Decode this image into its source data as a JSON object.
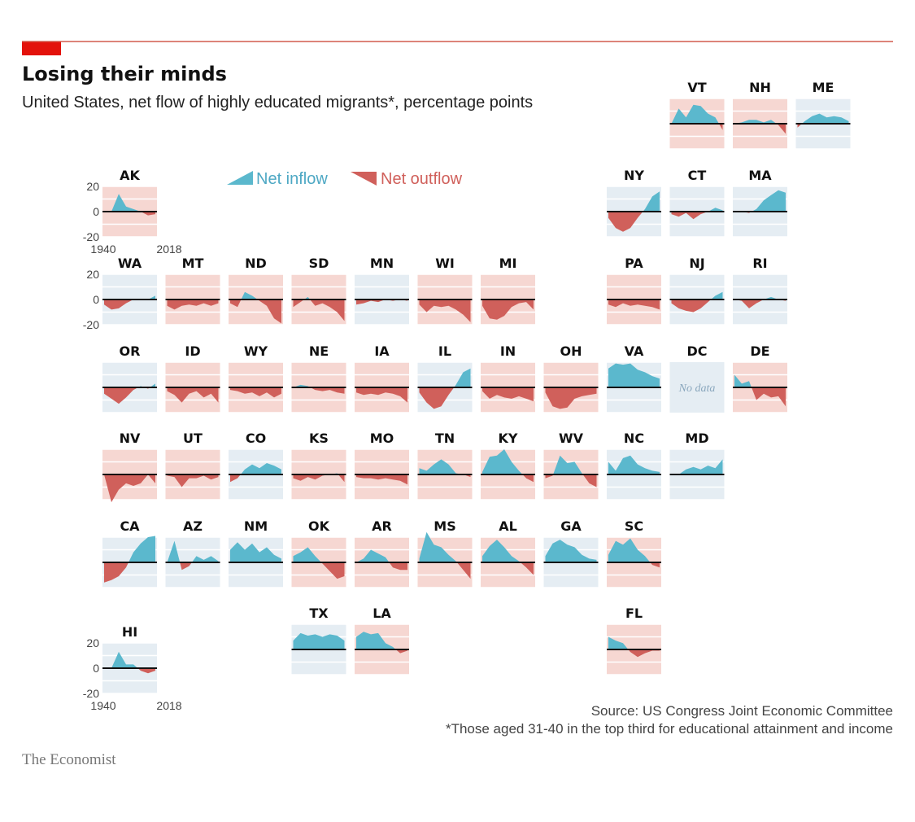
{
  "colors": {
    "inflow": "#5bb8cd",
    "outflow": "#d0605b",
    "bg_in": "#e5edf3",
    "bg_out": "#f6d7d2",
    "grid": "#ffffff",
    "zero": "#111111",
    "accent": "#e3120b",
    "rule": "#d25c4f"
  },
  "header": {
    "title": "Losing their minds",
    "subtitle": "United States, net flow of highly educated migrants*, percentage points"
  },
  "legend": {
    "inflow": "Net inflow",
    "outflow": "Net outflow"
  },
  "footer": {
    "source": "Source: US Congress Joint Economic Committee",
    "note": "*Those aged 31-40 in the top third for educational attainment and income",
    "brand": "The Economist"
  },
  "chart_data": {
    "type": "area",
    "title": "Losing their minds",
    "subtitle": "United States, net flow of highly educated migrants*, percentage points",
    "xlim": [
      1940,
      2018
    ],
    "ylim": [
      -20,
      20
    ],
    "y_ticks": [
      "20",
      "0",
      "-20"
    ],
    "x_ticks": [
      "1940",
      "2018"
    ],
    "states": [
      {
        "id": "VT",
        "bg": "out",
        "col": 10,
        "row": 0,
        "values": [
          0,
          12,
          5,
          15,
          14,
          8,
          5,
          -5
        ]
      },
      {
        "id": "NH",
        "bg": "out",
        "col": 11,
        "row": 0,
        "values": [
          0,
          1,
          3,
          3,
          1,
          3,
          -1,
          -8
        ]
      },
      {
        "id": "ME",
        "bg": "in",
        "col": 12,
        "row": 0,
        "values": [
          -3,
          2,
          6,
          8,
          5,
          6,
          5,
          2
        ]
      },
      {
        "id": "AK",
        "bg": "out",
        "col": 1,
        "row": 1,
        "values": [
          0,
          0,
          14,
          4,
          2,
          0,
          -3,
          -2
        ],
        "axes": true
      },
      {
        "id": "NY",
        "bg": "in",
        "col": 9,
        "row": 1,
        "values": [
          -5,
          -13,
          -16,
          -13,
          -5,
          2,
          12,
          16
        ]
      },
      {
        "id": "CT",
        "bg": "in",
        "col": 10,
        "row": 1,
        "values": [
          -2,
          -4,
          -1,
          -6,
          -2,
          0,
          3,
          1
        ]
      },
      {
        "id": "MA",
        "bg": "in",
        "col": 11,
        "row": 1,
        "values": [
          0,
          0,
          -1,
          2,
          9,
          13,
          17,
          15
        ]
      },
      {
        "id": "WA",
        "bg": "in",
        "col": 1,
        "row": 2,
        "values": [
          -4,
          -8,
          -7,
          -3,
          0,
          0,
          0,
          3
        ],
        "axes": true
      },
      {
        "id": "MT",
        "bg": "out",
        "col": 2,
        "row": 2,
        "values": [
          -5,
          -8,
          -5,
          -4,
          -5,
          -3,
          -5,
          -3
        ]
      },
      {
        "id": "ND",
        "bg": "out",
        "col": 3,
        "row": 2,
        "values": [
          -3,
          -6,
          6,
          3,
          -1,
          -5,
          -15,
          -19
        ]
      },
      {
        "id": "SD",
        "bg": "out",
        "col": 4,
        "row": 2,
        "values": [
          -6,
          -2,
          2,
          -5,
          -3,
          -6,
          -10,
          -17
        ]
      },
      {
        "id": "MN",
        "bg": "in",
        "col": 5,
        "row": 2,
        "values": [
          -4,
          -3,
          -1,
          -2,
          0,
          -1,
          0,
          -1
        ]
      },
      {
        "id": "WI",
        "bg": "out",
        "col": 6,
        "row": 2,
        "values": [
          -4,
          -10,
          -5,
          -6,
          -5,
          -8,
          -12,
          -18
        ]
      },
      {
        "id": "MI",
        "bg": "out",
        "col": 7,
        "row": 2,
        "values": [
          -5,
          -15,
          -16,
          -13,
          -6,
          -3,
          -2,
          -8
        ]
      },
      {
        "id": "PA",
        "bg": "out",
        "col": 9,
        "row": 2,
        "values": [
          -4,
          -6,
          -3,
          -5,
          -4,
          -5,
          -6,
          -8
        ]
      },
      {
        "id": "NJ",
        "bg": "in",
        "col": 10,
        "row": 2,
        "values": [
          -3,
          -7,
          -9,
          -10,
          -7,
          -2,
          3,
          6
        ]
      },
      {
        "id": "RI",
        "bg": "in",
        "col": 11,
        "row": 2,
        "values": [
          0,
          -1,
          -7,
          -3,
          0,
          2,
          0,
          -1
        ]
      },
      {
        "id": "OR",
        "bg": "in",
        "col": 1,
        "row": 3,
        "values": [
          -5,
          -9,
          -13,
          -8,
          -2,
          1,
          -1,
          3
        ]
      },
      {
        "id": "ID",
        "bg": "out",
        "col": 2,
        "row": 3,
        "values": [
          -3,
          -6,
          -12,
          -5,
          -3,
          -8,
          -5,
          -12
        ]
      },
      {
        "id": "WY",
        "bg": "out",
        "col": 3,
        "row": 3,
        "values": [
          -2,
          -3,
          -5,
          -4,
          -7,
          -4,
          -8,
          -5
        ]
      },
      {
        "id": "NE",
        "bg": "out",
        "col": 4,
        "row": 3,
        "values": [
          0,
          2,
          1,
          -2,
          -3,
          -2,
          -4,
          -5
        ]
      },
      {
        "id": "IA",
        "bg": "out",
        "col": 5,
        "row": 3,
        "values": [
          -4,
          -6,
          -5,
          -6,
          -4,
          -5,
          -7,
          -12
        ]
      },
      {
        "id": "IL",
        "bg": "in",
        "col": 6,
        "row": 3,
        "values": [
          -4,
          -12,
          -17,
          -15,
          -6,
          2,
          12,
          15
        ]
      },
      {
        "id": "IN",
        "bg": "out",
        "col": 7,
        "row": 3,
        "values": [
          -3,
          -9,
          -6,
          -8,
          -9,
          -7,
          -9,
          -11
        ]
      },
      {
        "id": "OH",
        "bg": "out",
        "col": 8,
        "row": 3,
        "values": [
          -4,
          -15,
          -17,
          -16,
          -9,
          -7,
          -6,
          -5
        ]
      },
      {
        "id": "VA",
        "bg": "in",
        "col": 9,
        "row": 3,
        "values": [
          15,
          19,
          18,
          19,
          14,
          12,
          9,
          7
        ]
      },
      {
        "id": "DC",
        "bg": "in",
        "col": 10,
        "row": 3,
        "nodata": "No data",
        "values": []
      },
      {
        "id": "DE",
        "bg": "out",
        "col": 11,
        "row": 3,
        "values": [
          10,
          3,
          5,
          -10,
          -5,
          -8,
          -7,
          -15
        ]
      },
      {
        "id": "NV",
        "bg": "out",
        "col": 1,
        "row": 4,
        "values": [
          0,
          -22,
          -12,
          -7,
          -9,
          -7,
          0,
          -7
        ]
      },
      {
        "id": "UT",
        "bg": "out",
        "col": 2,
        "row": 4,
        "values": [
          -1,
          -2,
          -10,
          -3,
          -3,
          -1,
          -4,
          -2
        ]
      },
      {
        "id": "CO",
        "bg": "in",
        "col": 3,
        "row": 4,
        "values": [
          -6,
          -3,
          4,
          8,
          5,
          9,
          7,
          4
        ]
      },
      {
        "id": "KS",
        "bg": "out",
        "col": 4,
        "row": 4,
        "values": [
          -3,
          -5,
          -2,
          -4,
          -1,
          0,
          1,
          -6
        ]
      },
      {
        "id": "MO",
        "bg": "out",
        "col": 5,
        "row": 4,
        "values": [
          -2,
          -3,
          -3,
          -4,
          -3,
          -4,
          -5,
          -8
        ]
      },
      {
        "id": "TN",
        "bg": "out",
        "col": 6,
        "row": 4,
        "values": [
          5,
          3,
          8,
          12,
          8,
          1,
          0,
          -2
        ]
      },
      {
        "id": "KY",
        "bg": "out",
        "col": 7,
        "row": 4,
        "values": [
          2,
          14,
          15,
          20,
          10,
          3,
          -3,
          -6
        ]
      },
      {
        "id": "WV",
        "bg": "out",
        "col": 8,
        "row": 4,
        "values": [
          -3,
          -1,
          15,
          9,
          10,
          1,
          -7,
          -10
        ]
      },
      {
        "id": "NC",
        "bg": "in",
        "col": 9,
        "row": 4,
        "values": [
          10,
          3,
          13,
          15,
          8,
          5,
          3,
          2
        ]
      },
      {
        "id": "MD",
        "bg": "in",
        "col": 10,
        "row": 4,
        "values": [
          0,
          0,
          4,
          6,
          4,
          7,
          5,
          12
        ]
      },
      {
        "id": "CA",
        "bg": "in",
        "col": 1,
        "row": 5,
        "values": [
          -16,
          -14,
          -11,
          -4,
          8,
          15,
          20,
          21
        ]
      },
      {
        "id": "AZ",
        "bg": "in",
        "col": 2,
        "row": 5,
        "values": [
          0,
          17,
          -6,
          -3,
          5,
          2,
          5,
          1
        ]
      },
      {
        "id": "NM",
        "bg": "in",
        "col": 3,
        "row": 5,
        "values": [
          10,
          16,
          10,
          15,
          8,
          12,
          6,
          3
        ]
      },
      {
        "id": "OK",
        "bg": "out",
        "col": 4,
        "row": 5,
        "values": [
          5,
          8,
          12,
          5,
          -1,
          -7,
          -13,
          -11
        ]
      },
      {
        "id": "AR",
        "bg": "out",
        "col": 5,
        "row": 5,
        "values": [
          0,
          3,
          10,
          7,
          4,
          -4,
          -6,
          -6
        ]
      },
      {
        "id": "MS",
        "bg": "out",
        "col": 6,
        "row": 5,
        "values": [
          3,
          24,
          14,
          12,
          6,
          1,
          -6,
          -13
        ]
      },
      {
        "id": "AL",
        "bg": "out",
        "col": 7,
        "row": 5,
        "values": [
          5,
          13,
          18,
          12,
          5,
          1,
          -4,
          -10
        ]
      },
      {
        "id": "GA",
        "bg": "in",
        "col": 8,
        "row": 5,
        "values": [
          5,
          15,
          18,
          14,
          12,
          6,
          3,
          2
        ]
      },
      {
        "id": "SC",
        "bg": "out",
        "col": 9,
        "row": 5,
        "values": [
          6,
          17,
          14,
          19,
          10,
          5,
          -2,
          -4
        ]
      },
      {
        "id": "TX",
        "bg": "in",
        "col": 4,
        "row": 6,
        "values": [
          7,
          13,
          11,
          12,
          10,
          12,
          11,
          7
        ]
      },
      {
        "id": "LA",
        "bg": "out",
        "col": 5,
        "row": 6,
        "values": [
          10,
          14,
          12,
          13,
          5,
          2,
          -3,
          -1
        ]
      },
      {
        "id": "FL",
        "bg": "out",
        "col": 9,
        "row": 6,
        "values": [
          10,
          7,
          5,
          -2,
          -6,
          -3,
          -1,
          -1
        ]
      },
      {
        "id": "HI",
        "bg": "in",
        "col": 1,
        "row": 7,
        "values": [
          0,
          0,
          13,
          3,
          3,
          -2,
          -4,
          -2
        ],
        "axes": true
      }
    ]
  }
}
